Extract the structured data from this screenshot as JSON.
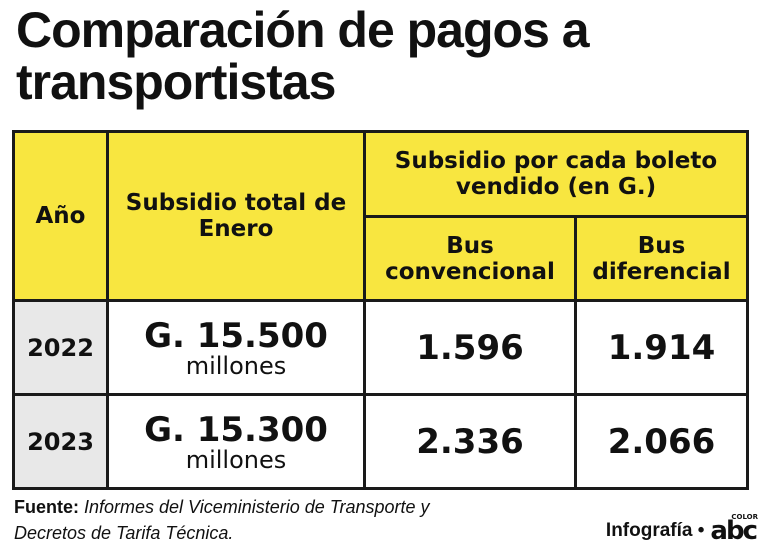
{
  "title": {
    "line1": "Comparación de pagos a",
    "line2": "transportistas"
  },
  "table": {
    "headers": {
      "year": "Año",
      "total": "Subsidio total de Enero",
      "per_ticket": "Subsidio por cada boleto vendido (en G.)",
      "conventional": "Bus convencional",
      "differential": "Bus diferencial"
    },
    "rows": [
      {
        "year": "2022",
        "total_amount": "G. 15.500",
        "total_unit": "millones",
        "conventional": "1.596",
        "differential": "1.914"
      },
      {
        "year": "2023",
        "total_amount": "G. 15.300",
        "total_unit": "millones",
        "conventional": "2.336",
        "differential": "2.066"
      }
    ]
  },
  "footer": {
    "source_label": "Fuente:",
    "source_text": "Informes del Viceministerio de Transporte y Decretos de Tarifa Técnica.",
    "credit": "Infografía •",
    "logo_text": "abc",
    "logo_small": "COLOR"
  },
  "colors": {
    "header_yellow": "#f8e640",
    "year_gray": "#e8e8e8",
    "border": "#1a1a1a"
  }
}
